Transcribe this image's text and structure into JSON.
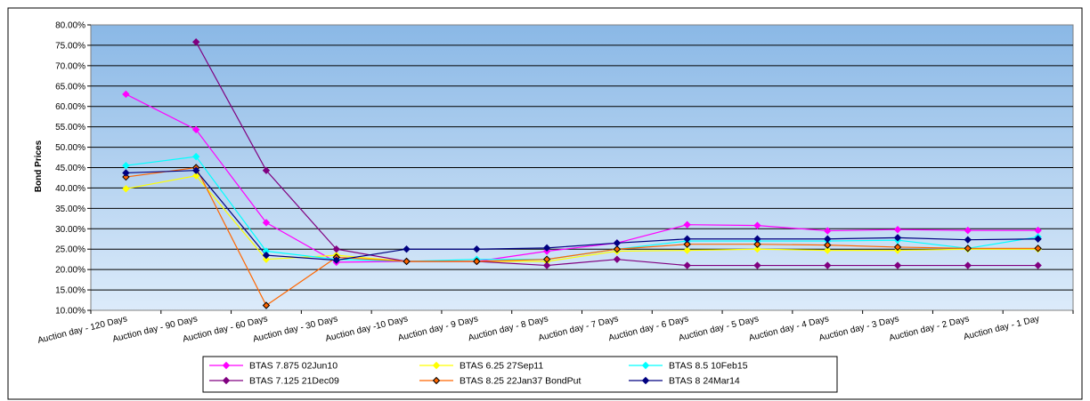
{
  "chart_data": {
    "type": "line",
    "title": "",
    "xlabel": "",
    "ylabel": "Bond Prices",
    "ylim": [
      0.1,
      0.8
    ],
    "ytick_step": 0.05,
    "grid": "horizontal",
    "legend_placement": "bottom",
    "plot_background": "gradient-blue",
    "categories": [
      "Auction day - 120 Days",
      "Auction day - 90 Days",
      "Auction day - 60 Days",
      "Auction day - 30 Days",
      "Auction day -10 Days",
      "Auction day - 9 Days",
      "Auction day - 8 Days",
      "Auction day - 7 Days",
      "Auction day - 6 Days",
      "Auction day - 5 Days",
      "Auction day - 4 Days",
      "Auction day - 3 Days",
      "Auction day - 2 Days",
      "Auction day - 1 Day"
    ],
    "series": [
      {
        "name": "BTAS 7.875 02Jun10",
        "color": "#FF00FF",
        "marker": "diamond",
        "values": [
          0.63,
          0.543,
          0.315,
          0.218,
          0.22,
          0.22,
          0.245,
          0.265,
          0.31,
          0.308,
          0.295,
          0.298,
          0.296,
          0.296
        ]
      },
      {
        "name": "BTAS 6.25 27Sep11",
        "color": "#FFFF00",
        "marker": "diamond",
        "values": [
          0.398,
          0.43,
          0.225,
          0.235,
          0.22,
          0.22,
          0.22,
          0.245,
          0.247,
          0.25,
          0.247,
          0.247,
          0.25,
          0.25
        ]
      },
      {
        "name": "BTAS 8.5 10Feb15",
        "color": "#00FFFF",
        "marker": "diamond",
        "values": [
          0.455,
          0.477,
          0.245,
          0.225,
          0.22,
          0.225,
          0.225,
          0.25,
          0.27,
          0.27,
          0.27,
          0.272,
          0.252,
          0.28
        ]
      },
      {
        "name": "BTAS 7.125 21Dec09",
        "color": "#800080",
        "marker": "diamond",
        "values": [
          null,
          0.758,
          0.443,
          0.25,
          0.22,
          0.22,
          0.21,
          0.225,
          0.21,
          0.21,
          0.21,
          0.21,
          0.21,
          0.21
        ]
      },
      {
        "name": "BTAS 8.25 22Jan37 BondPut",
        "color": "#FF6600",
        "marker": "diamond-dark",
        "values": [
          0.427,
          0.45,
          0.112,
          0.23,
          0.22,
          0.22,
          0.225,
          0.25,
          0.262,
          0.262,
          0.26,
          0.255,
          0.252,
          0.252
        ]
      },
      {
        "name": "BTAS 8 24Mar14",
        "color": "#000080",
        "marker": "diamond",
        "values": [
          0.437,
          0.443,
          0.235,
          0.223,
          0.25,
          0.25,
          0.253,
          0.265,
          0.275,
          0.275,
          0.275,
          0.278,
          0.273,
          0.275
        ]
      }
    ]
  }
}
